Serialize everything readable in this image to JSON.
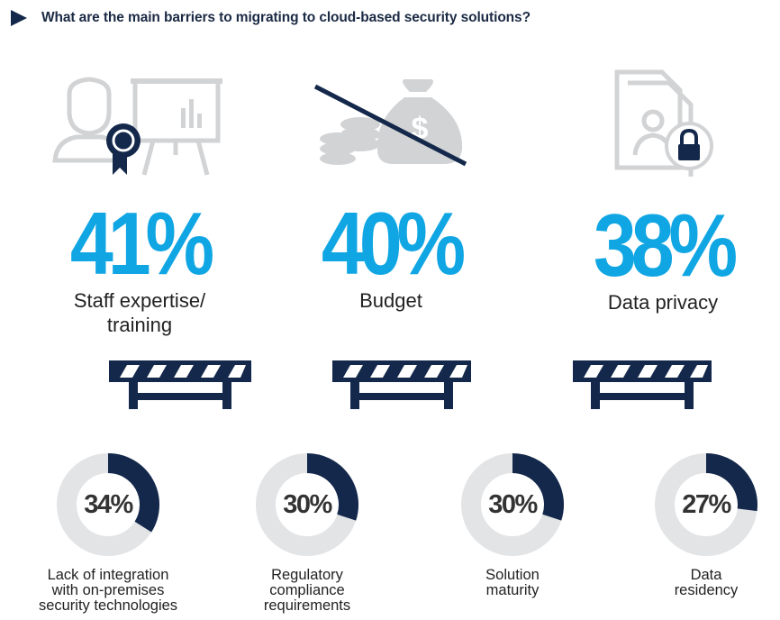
{
  "header": {
    "title": "What are the main barriers to migrating to cloud-based security solutions?"
  },
  "colors": {
    "accent": "#10a6e3",
    "navy": "#14284b",
    "track": "#e3e4e6",
    "icon_gray": "#d2d3d5"
  },
  "icons": [
    "trainer-with-certificate-icon",
    "budget-crossed-out-icon",
    "locked-document-icon",
    "barrier-icon"
  ],
  "chart_data": [
    {
      "type": "stat",
      "items": [
        {
          "label": "Staff expertise/\ntraining",
          "value": 41,
          "display": "41%"
        },
        {
          "label": "Budget",
          "value": 40,
          "display": "40%"
        },
        {
          "label": "Data privacy",
          "value": 38,
          "display": "38%"
        }
      ]
    },
    {
      "type": "pie",
      "items": [
        {
          "label": "Lack of integration\nwith on-premises\nsecurity technologies",
          "value": 34,
          "display": "34%"
        },
        {
          "label": "Regulatory\ncompliance\nrequirements",
          "value": 30,
          "display": "30%"
        },
        {
          "label": "Solution\nmaturity",
          "value": 30,
          "display": "30%"
        },
        {
          "label": "Data\nresidency",
          "value": 27,
          "display": "27%"
        }
      ]
    }
  ]
}
